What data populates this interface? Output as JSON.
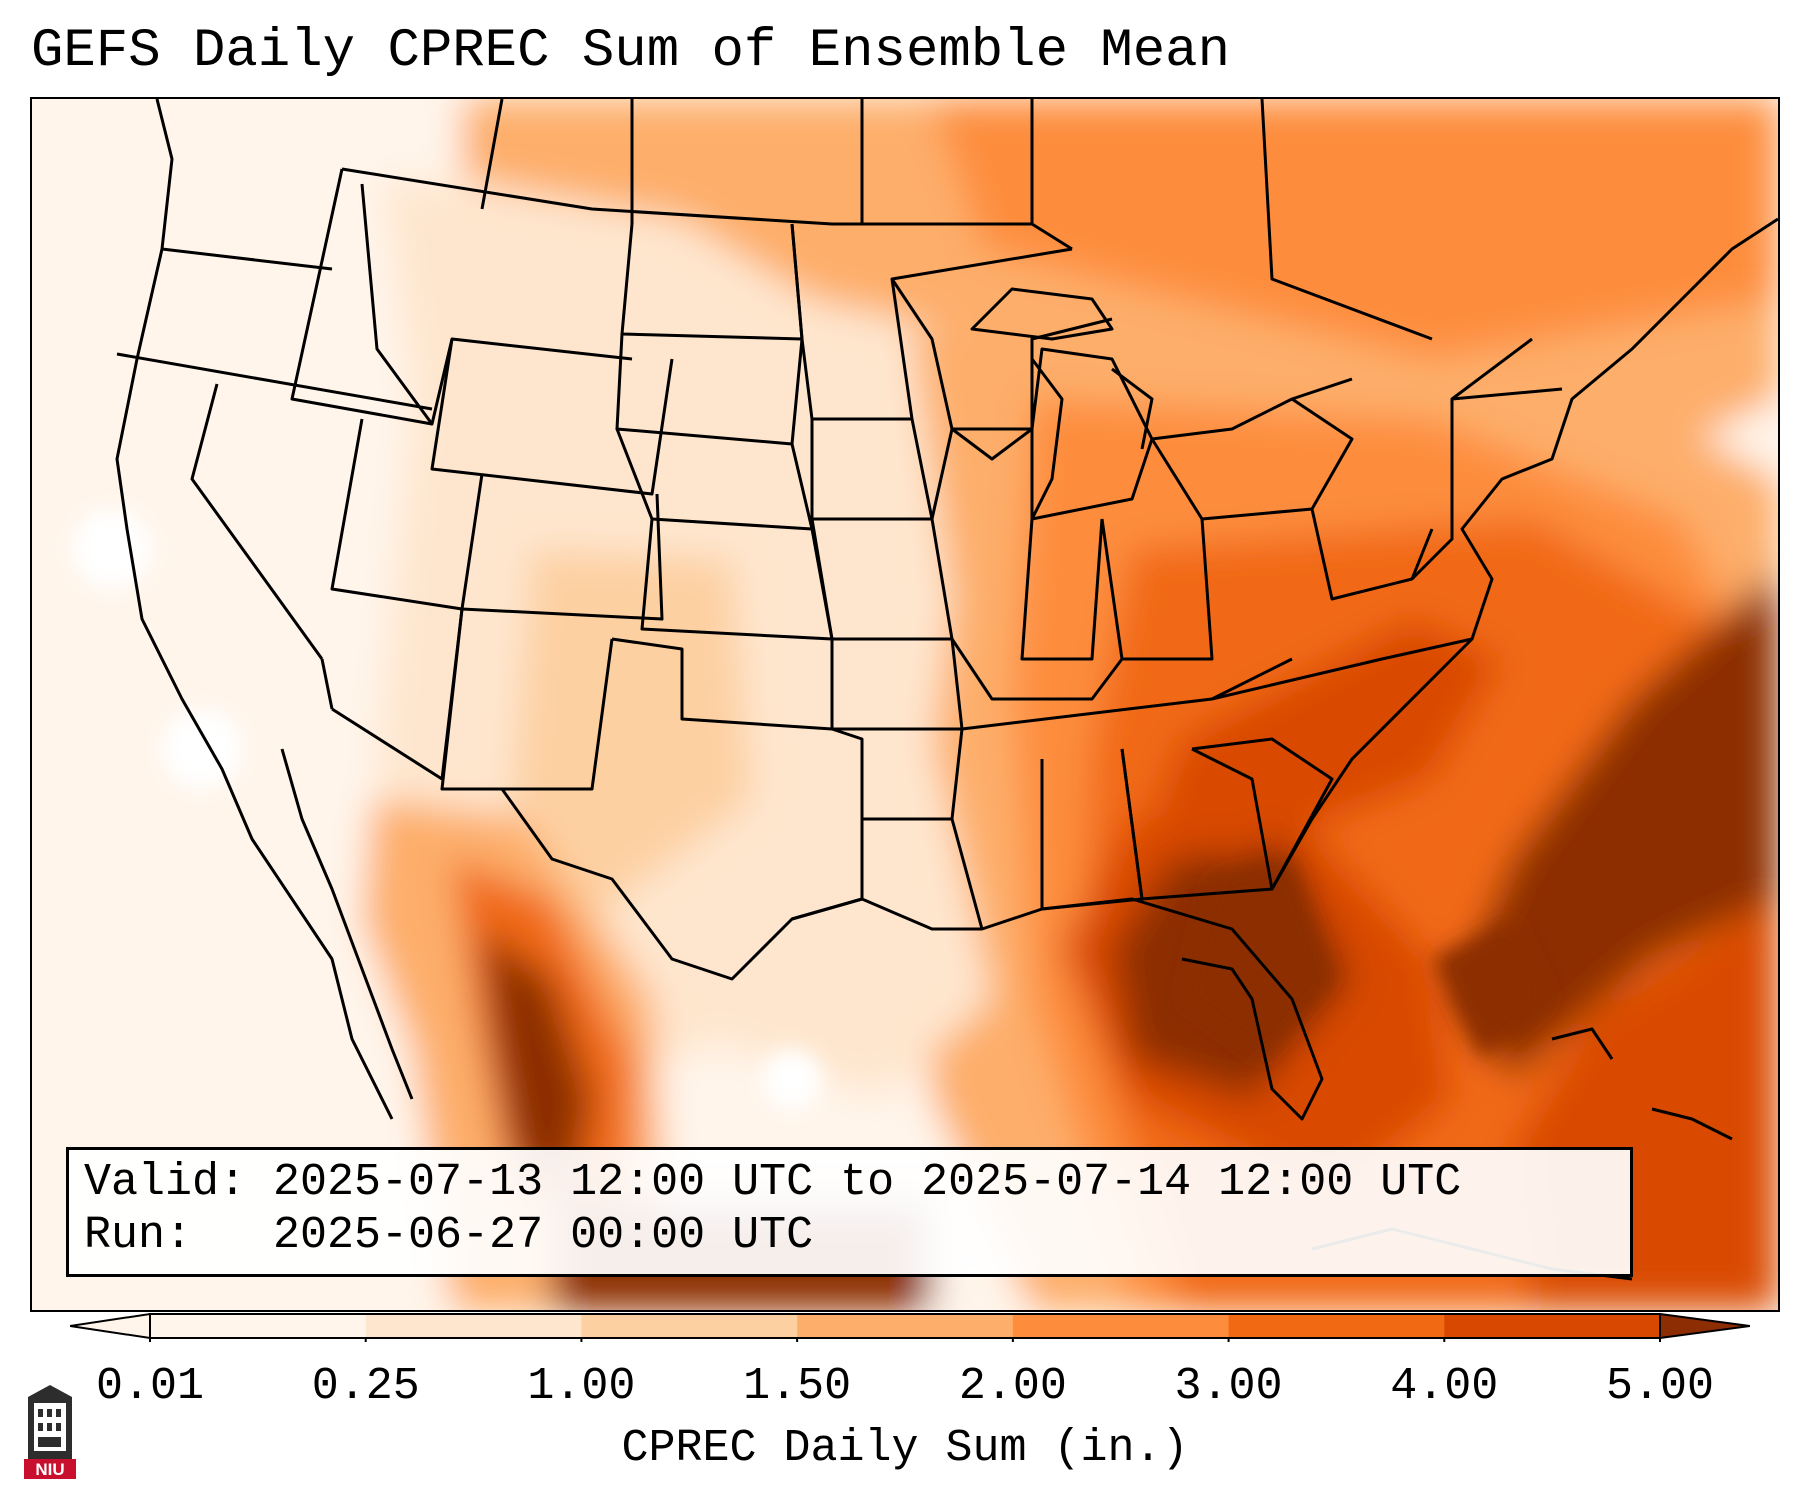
{
  "title": "GEFS Daily CPREC Sum of Ensemble Mean",
  "info": {
    "valid_line": "Valid: 2025-07-13 12:00 UTC to 2025-07-14 12:00 UTC",
    "run_line": "Run:   2025-06-27 00:00 UTC"
  },
  "colorbar": {
    "label": "CPREC Daily Sum (in.)",
    "ticks": [
      "0.01",
      "0.25",
      "1.00",
      "1.50",
      "2.00",
      "3.00",
      "4.00",
      "5.00"
    ],
    "colors": [
      "#fff5eb",
      "#fee6ce",
      "#fdd0a2",
      "#fdae6b",
      "#fd8d3c",
      "#f16913",
      "#d94801",
      "#8c2d04"
    ],
    "extend": "both"
  },
  "logo": {
    "text": "NIU",
    "icon": "niu-university-logo-icon"
  },
  "map_colors": {
    "very_light": "#fff5eb",
    "light": "#fee6ce",
    "light_tan": "#fdd0a2",
    "tan": "#fdae6b",
    "orange": "#fd8d3c",
    "dark_orange": "#f16913",
    "red_orange": "#d94801",
    "brown": "#8c2d04"
  }
}
